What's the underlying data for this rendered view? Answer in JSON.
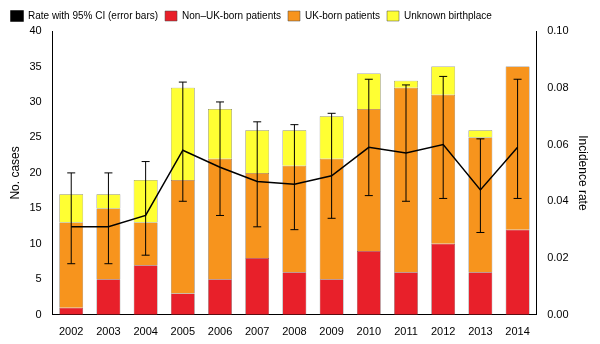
{
  "chart_data": {
    "type": "bar",
    "categories": [
      "2002",
      "2003",
      "2004",
      "2005",
      "2006",
      "2007",
      "2008",
      "2009",
      "2010",
      "2011",
      "2012",
      "2013",
      "2014"
    ],
    "y_label": "No. cases",
    "y2_label": "Incidence rate",
    "ylim": [
      0,
      40
    ],
    "yticks": [
      0,
      5,
      10,
      15,
      20,
      25,
      30,
      35,
      40
    ],
    "y2lim": [
      0,
      0.1
    ],
    "y2ticks": [
      {
        "value": 0,
        "label": "0.00"
      },
      {
        "value": 0.02,
        "label": "0.02"
      },
      {
        "value": 0.04,
        "label": "0.04"
      },
      {
        "value": 0.06,
        "label": "0.06"
      },
      {
        "value": 0.08,
        "label": "0.08"
      },
      {
        "value": 0.1,
        "label": "0.10"
      }
    ],
    "stacked": true,
    "grid": false,
    "legend": "top",
    "series": [
      {
        "name": "Non–UK-born patients",
        "color": "#e8202a",
        "values": [
          1,
          5,
          7,
          3,
          5,
          8,
          6,
          5,
          9,
          6,
          10,
          6,
          12
        ]
      },
      {
        "name": "UK-born patients",
        "color": "#f7941d",
        "values": [
          12,
          10,
          6,
          16,
          17,
          12,
          15,
          17,
          20,
          26,
          21,
          19,
          23
        ]
      },
      {
        "name": "Unknown birthplace",
        "color": "#ffff33",
        "values": [
          4,
          2,
          6,
          13,
          7,
          6,
          5,
          6,
          5,
          1,
          4,
          1,
          0
        ]
      },
      {
        "name": "Rate with 95% CI (error bars)",
        "color": "#000000",
        "type": "line",
        "axis": "y2",
        "values": [
          0.031,
          0.031,
          0.035,
          0.058,
          0.052,
          0.047,
          0.046,
          0.049,
          0.059,
          0.057,
          0.06,
          0.044,
          0.059
        ],
        "ci_lower": [
          0.018,
          0.018,
          0.021,
          0.04,
          0.035,
          0.031,
          0.03,
          0.034,
          0.042,
          0.04,
          0.041,
          0.029,
          0.041
        ],
        "ci_upper": [
          0.05,
          0.05,
          0.054,
          0.082,
          0.075,
          0.068,
          0.067,
          0.071,
          0.083,
          0.081,
          0.084,
          0.062,
          0.083
        ]
      }
    ]
  }
}
